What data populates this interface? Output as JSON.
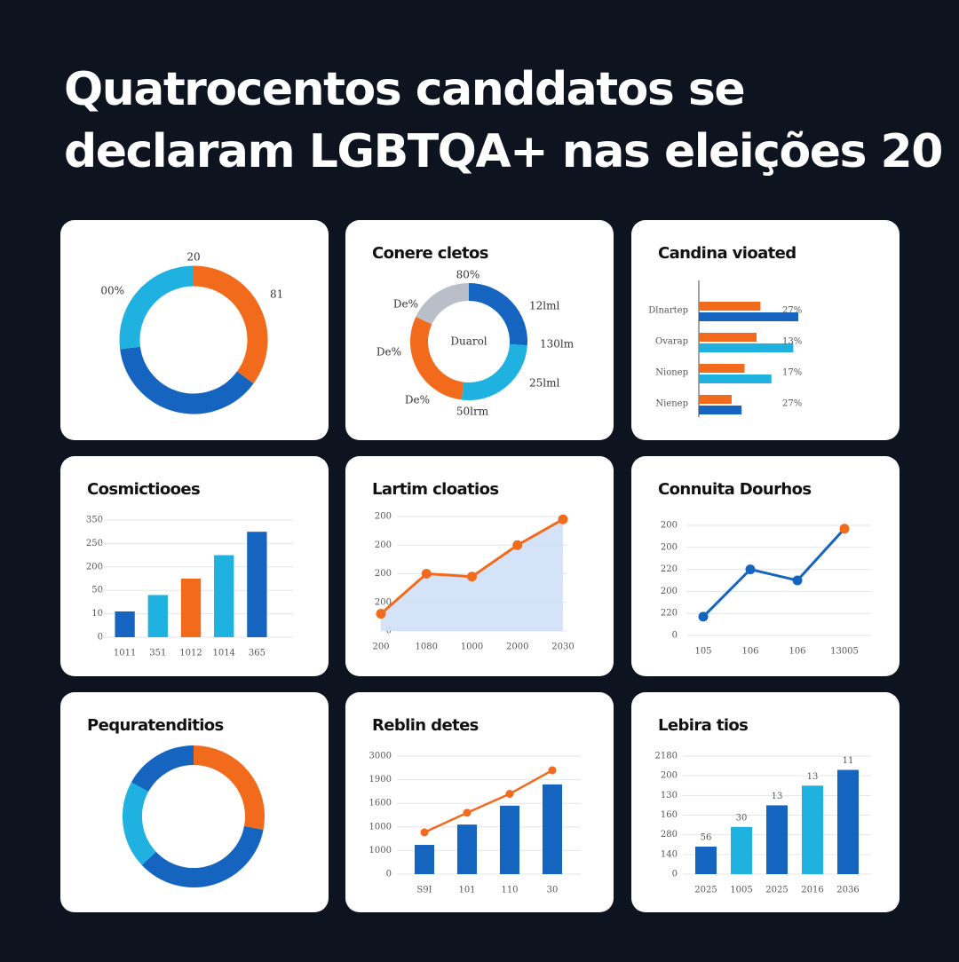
{
  "title": [
    "Quatrocentos canddatos se",
    "declaram LGBTQA+ nas eleições 20"
  ],
  "chart_data": [
    {
      "type": "donut",
      "values": [
        35,
        38,
        27
      ],
      "colors": [
        "#f26b1d",
        "#1565c0",
        "#1fb2e0"
      ],
      "annotations": [
        "20",
        "00%",
        "81"
      ]
    },
    {
      "type": "donut",
      "title": "Conere cletos",
      "center_label": "Duarol",
      "values": [
        26,
        26,
        30,
        18
      ],
      "colors": [
        "#1565c0",
        "#1fb2e0",
        "#f26b1d",
        "#b8bfc9"
      ],
      "annotations": [
        "80%",
        "De%",
        "12lml",
        "130lm",
        "De%",
        "25lml",
        "De%",
        "50lrm"
      ]
    },
    {
      "type": "hbar",
      "title": "Candina vioated",
      "categories": [
        "Dlnartep",
        "Ovarap",
        "Nionep",
        "Nienep"
      ],
      "xlim": [
        0,
        100
      ],
      "series": [
        {
          "color": "#f26b1d",
          "values": [
            62,
            58,
            46,
            33
          ]
        },
        {
          "colors": [
            "#1565c0",
            "#1fb2e0",
            "#1fb2e0",
            "#1565c0"
          ],
          "values": [
            100,
            95,
            73,
            43
          ]
        }
      ],
      "annotations": [
        "27%",
        "13%",
        "17%",
        "27%"
      ]
    },
    {
      "type": "bar",
      "title": "Cosmictiooes",
      "categories": [
        "1011",
        "351",
        "1012",
        "1014",
        "365"
      ],
      "values": [
        1.1,
        1.8,
        2.5,
        3.5,
        4.5
      ],
      "colors": [
        "#1565c0",
        "#1fb2e0",
        "#f26b1d",
        "#1fb2e0",
        "#1565c0"
      ],
      "ylim": [
        0,
        5
      ],
      "yticks": [
        0,
        {
          "value": 1,
          "label": "10"
        },
        {
          "value": 2,
          "label": "50"
        },
        {
          "value": 3,
          "label": "200"
        },
        {
          "value": 4,
          "label": "250"
        },
        {
          "value": 5,
          "label": "350"
        }
      ],
      "grid": true
    },
    {
      "type": "area",
      "title": "Lartim cloatios",
      "categories": [
        "200",
        "1080",
        "1000",
        "2000",
        "2030"
      ],
      "values": [
        0.6,
        2.0,
        1.9,
        3.0,
        3.9
      ],
      "color": "#f26b1d",
      "fill": "#cfe0f7",
      "ylim": [
        0,
        4
      ],
      "yticks": [
        0,
        {
          "value": 1,
          "label": "200"
        },
        {
          "value": 2,
          "label": "200"
        },
        {
          "value": 3,
          "label": "200"
        },
        {
          "value": 4,
          "label": "200"
        }
      ],
      "grid": true
    },
    {
      "type": "line",
      "title": "Connuita Dourhos",
      "categories": [
        "105",
        "106",
        "106",
        "13005"
      ],
      "values": [
        0.85,
        3.0,
        2.5,
        4.85
      ],
      "color": "#1565c0",
      "marker_colors": [
        "#1565c0",
        "#1565c0",
        "#1565c0",
        "#f26b1d"
      ],
      "ylim": [
        0,
        5
      ],
      "yticks": [
        0,
        {
          "value": 1,
          "label": "220"
        },
        {
          "value": 2,
          "label": "200"
        },
        {
          "value": 3,
          "label": "220"
        },
        {
          "value": 4,
          "label": "200"
        },
        {
          "value": 5,
          "label": "200"
        }
      ],
      "grid": true
    },
    {
      "type": "donut",
      "title": "Pequratenditios",
      "values": [
        28,
        35,
        20,
        17
      ],
      "colors": [
        "#f26b1d",
        "#1565c0",
        "#1fb2e0",
        "#1565c0"
      ]
    },
    {
      "type": "combo",
      "title": "Reblin detes",
      "categories": [
        "S9I",
        "101",
        "110",
        "30"
      ],
      "ylim": [
        0,
        5
      ],
      "yticks": [
        0,
        {
          "value": 1,
          "label": "1000"
        },
        {
          "value": 2,
          "label": "1000"
        },
        {
          "value": 3,
          "label": "1600"
        },
        {
          "value": 4,
          "label": "1900"
        },
        {
          "value": 5,
          "label": "3000"
        }
      ],
      "series": [
        {
          "type": "bar",
          "color": "#1565c0",
          "values": [
            1.24,
            2.1,
            2.9,
            3.8
          ]
        },
        {
          "type": "line",
          "color": "#f26b1d",
          "values": [
            1.77,
            2.6,
            3.4,
            4.4
          ]
        }
      ],
      "grid": true
    },
    {
      "type": "bar",
      "title": "Lebira tios",
      "categories": [
        "2025",
        "1005",
        "2025",
        "2016",
        "2036"
      ],
      "values": [
        1.4,
        2.4,
        3.5,
        4.5,
        5.3
      ],
      "colors": [
        "#1565c0",
        "#1fb2e0",
        "#1565c0",
        "#1fb2e0",
        "#1565c0"
      ],
      "ylim": [
        0,
        6
      ],
      "yticks": [
        0,
        {
          "value": 1,
          "label": "140"
        },
        {
          "value": 2,
          "label": "280"
        },
        {
          "value": 3,
          "label": "160"
        },
        {
          "value": 4,
          "label": "130"
        },
        {
          "value": 5,
          "label": "200"
        },
        {
          "value": 6,
          "label": "2180"
        }
      ],
      "annotations": [
        "56",
        "30",
        "13",
        "13",
        "11"
      ],
      "grid": true
    }
  ]
}
